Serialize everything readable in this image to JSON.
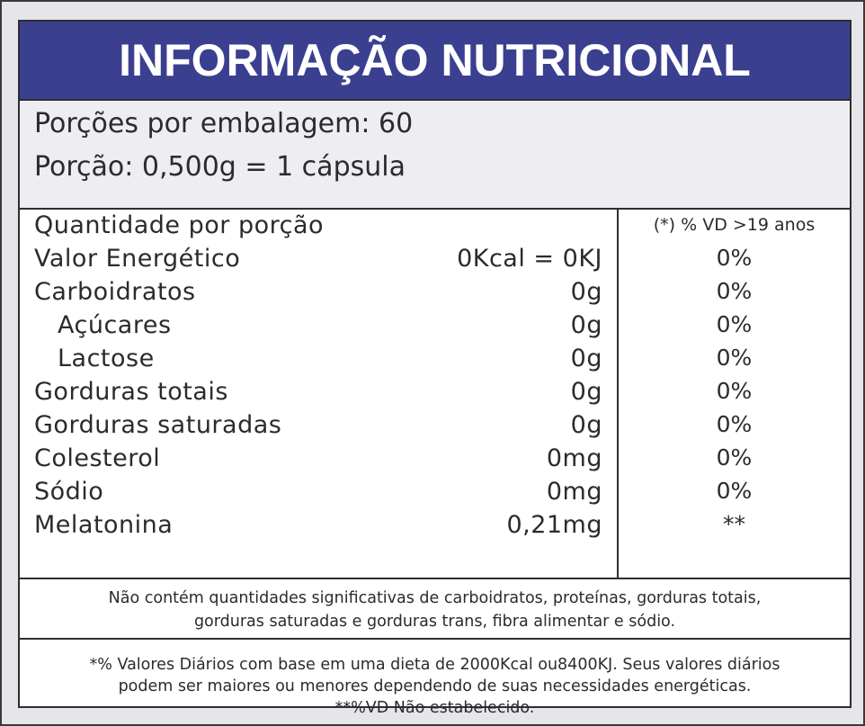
{
  "title": "INFORMAÇÃO NUTRICIONAL",
  "serving": {
    "portions_per_package": "Porções por embalagem: 60",
    "portion": "Porção: 0,500g = 1 cápsula"
  },
  "table": {
    "header_label": "Quantidade por porção",
    "vd_header": "(*) % VD  >19 anos",
    "rows": [
      {
        "name": "Valor Energético",
        "amount": "0Kcal = 0KJ",
        "vd": "0%"
      },
      {
        "name": "Carboidratos",
        "amount": "0g",
        "vd": "0%"
      },
      {
        "name": "Açúcares",
        "amount": "0g",
        "vd": "0%"
      },
      {
        "name": "Lactose",
        "amount": "0g",
        "vd": "0%"
      },
      {
        "name": "Gorduras totais",
        "amount": "0g",
        "vd": "0%"
      },
      {
        "name": "Gorduras saturadas",
        "amount": "0g",
        "vd": "0%"
      },
      {
        "name": "Colesterol",
        "amount": "0mg",
        "vd": "0%"
      },
      {
        "name": "Sódio",
        "amount": "0mg",
        "vd": "0%"
      },
      {
        "name": "Melatonina",
        "amount": "0,21mg",
        "vd": "**"
      }
    ]
  },
  "notes": {
    "not_significant_line1": "Não contém quantidades significativas de carboidratos, proteínas, gorduras totais,",
    "not_significant_line2": "gorduras saturadas e gorduras trans, fibra alimentar e sódio.",
    "vd_line1": "*% Valores Diários com base em uma dieta de 2000Kcal ou8400KJ. Seus valores diários",
    "vd_line2": "podem ser maiores ou menores dependendo de suas necessidades energéticas.",
    "vd_line3": "**%VD Não estabelecido."
  },
  "colors": {
    "header_bg": "#3a3f8f",
    "header_text": "#ffffff",
    "border": "#2e2e2e",
    "text": "#2b2b2b"
  }
}
